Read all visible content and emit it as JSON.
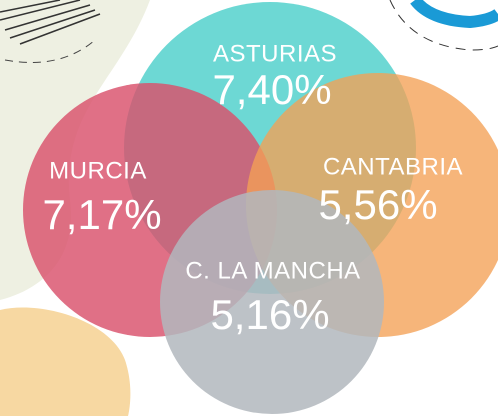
{
  "regions": [
    {
      "name": "ASTURIAS",
      "value": "7,40%"
    },
    {
      "name": "MURCIA",
      "value": "7,17%"
    },
    {
      "name": "CANTABRIA",
      "value": "5,56%"
    },
    {
      "name": "C. LA MANCHA",
      "value": "5,16%"
    }
  ]
}
